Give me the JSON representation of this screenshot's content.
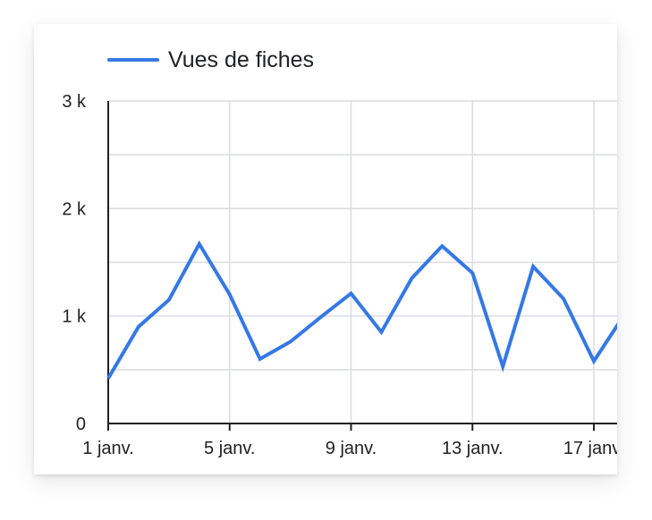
{
  "chart_data": {
    "type": "line",
    "title": "",
    "xlabel": "",
    "ylabel": "",
    "legend_position": "top-left",
    "grid": true,
    "x_tick_labels": [
      "1 janv.",
      "5 janv.",
      "9 janv.",
      "13 janv.",
      "17 janv."
    ],
    "x_tick_days": [
      1,
      5,
      9,
      13,
      17
    ],
    "y_ticks": [
      {
        "value": 0,
        "label": "0"
      },
      {
        "value": 1000,
        "label": "1 k"
      },
      {
        "value": 2000,
        "label": "2 k"
      },
      {
        "value": 3000,
        "label": "3 k"
      }
    ],
    "y_minor_ticks": [
      500,
      1500,
      2500
    ],
    "ylim": [
      0,
      3000
    ],
    "xlim": [
      1,
      18
    ],
    "series": [
      {
        "name": "Vues de fiches",
        "color": "#3578e5",
        "x": [
          1,
          2,
          3,
          4,
          5,
          6,
          7,
          8,
          9,
          10,
          11,
          12,
          13,
          14,
          15,
          16,
          17,
          18
        ],
        "values": [
          420,
          900,
          1150,
          1670,
          1200,
          600,
          760,
          990,
          1210,
          850,
          1350,
          1650,
          1400,
          530,
          1460,
          1160,
          580,
          1010
        ]
      }
    ]
  }
}
